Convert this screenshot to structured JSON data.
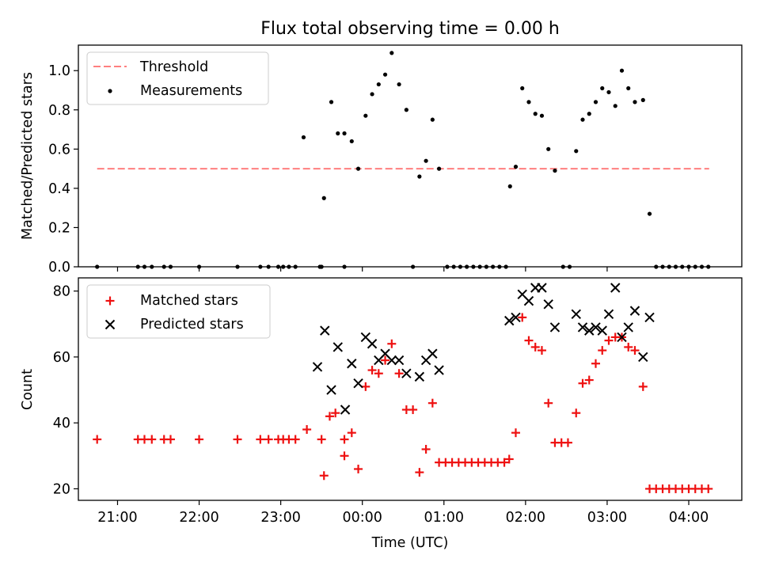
{
  "figure": {
    "title": "Flux total observing time = 0.00 h",
    "xlabel": "Time (UTC)",
    "xticks": [
      "21:00",
      "22:00",
      "23:00",
      "00:00",
      "01:00",
      "02:00",
      "03:00",
      "04:00"
    ]
  },
  "colors": {
    "threshold": "#ff7f7f",
    "measurements": "#000000",
    "matched": "#ee1111",
    "predicted": "#000000"
  },
  "chart_data": [
    {
      "type": "scatter",
      "ylabel": "Matched/Predicted stars",
      "ylim": [
        0,
        1.13
      ],
      "yticks": [
        "0.0",
        "0.2",
        "0.4",
        "0.6",
        "0.8",
        "1.0"
      ],
      "xlim": [
        -3.48,
        4.65
      ],
      "x_unit": "hours relative to 00:00 UTC",
      "legend_placement": "top-left",
      "threshold": {
        "name": "Threshold",
        "value": 0.5,
        "x_range": [
          -3.25,
          4.25
        ]
      },
      "series": [
        {
          "name": "Measurements",
          "points": [
            [
              -3.25,
              0
            ],
            [
              -2.75,
              0
            ],
            [
              -2.67,
              0
            ],
            [
              -2.58,
              0
            ],
            [
              -2.43,
              0
            ],
            [
              -2.35,
              0
            ],
            [
              -2.0,
              0
            ],
            [
              -1.53,
              0
            ],
            [
              -1.25,
              0
            ],
            [
              -1.15,
              0
            ],
            [
              -1.03,
              0
            ],
            [
              -0.97,
              0
            ],
            [
              -0.9,
              0
            ],
            [
              -0.82,
              0
            ],
            [
              -0.5,
              0
            ],
            [
              -0.22,
              0
            ],
            [
              -0.52,
              0
            ],
            [
              -0.72,
              0.66
            ],
            [
              -0.47,
              0.35
            ],
            [
              -0.38,
              0.84
            ],
            [
              -0.3,
              0.68
            ],
            [
              -0.22,
              0.68
            ],
            [
              -0.13,
              0.64
            ],
            [
              -0.05,
              0.5
            ],
            [
              0.04,
              0.77
            ],
            [
              0.12,
              0.88
            ],
            [
              0.2,
              0.93
            ],
            [
              0.28,
              0.98
            ],
            [
              0.36,
              1.09
            ],
            [
              0.45,
              0.93
            ],
            [
              0.54,
              0.8
            ],
            [
              0.62,
              0.0
            ],
            [
              0.7,
              0.46
            ],
            [
              0.78,
              0.54
            ],
            [
              0.86,
              0.75
            ],
            [
              0.94,
              0.5
            ],
            [
              1.04,
              0
            ],
            [
              1.12,
              0
            ],
            [
              1.2,
              0
            ],
            [
              1.28,
              0
            ],
            [
              1.36,
              0
            ],
            [
              1.44,
              0
            ],
            [
              1.52,
              0
            ],
            [
              1.6,
              0
            ],
            [
              1.68,
              0
            ],
            [
              1.76,
              0
            ],
            [
              1.81,
              0.41
            ],
            [
              1.88,
              0.51
            ],
            [
              1.96,
              0.91
            ],
            [
              2.04,
              0.84
            ],
            [
              2.12,
              0.78
            ],
            [
              2.2,
              0.77
            ],
            [
              2.28,
              0.6
            ],
            [
              2.36,
              0.49
            ],
            [
              2.46,
              0
            ],
            [
              2.54,
              0
            ],
            [
              2.62,
              0.59
            ],
            [
              2.7,
              0.75
            ],
            [
              2.78,
              0.78
            ],
            [
              2.86,
              0.84
            ],
            [
              2.94,
              0.91
            ],
            [
              3.02,
              0.89
            ],
            [
              3.1,
              0.82
            ],
            [
              3.18,
              1.0
            ],
            [
              3.26,
              0.91
            ],
            [
              3.34,
              0.84
            ],
            [
              3.44,
              0.85
            ],
            [
              3.52,
              0.27
            ],
            [
              3.6,
              0
            ],
            [
              3.68,
              0
            ],
            [
              3.76,
              0
            ],
            [
              3.84,
              0
            ],
            [
              3.92,
              0
            ],
            [
              4.0,
              0
            ],
            [
              4.08,
              0
            ],
            [
              4.16,
              0
            ],
            [
              4.24,
              0
            ]
          ]
        }
      ]
    },
    {
      "type": "scatter",
      "ylabel": "Count",
      "ylim": [
        16.5,
        84
      ],
      "yticks": [
        "20",
        "40",
        "60",
        "80"
      ],
      "xlim": [
        -3.48,
        4.65
      ],
      "x_unit": "hours relative to 00:00 UTC",
      "legend_placement": "top-left",
      "series": [
        {
          "name": "Matched stars",
          "points": [
            [
              -3.25,
              35
            ],
            [
              -2.75,
              35
            ],
            [
              -2.67,
              35
            ],
            [
              -2.58,
              35
            ],
            [
              -2.43,
              35
            ],
            [
              -2.35,
              35
            ],
            [
              -2.0,
              35
            ],
            [
              -1.53,
              35
            ],
            [
              -1.25,
              35
            ],
            [
              -1.15,
              35
            ],
            [
              -1.03,
              35
            ],
            [
              -0.97,
              35
            ],
            [
              -0.9,
              35
            ],
            [
              -0.82,
              35
            ],
            [
              -0.5,
              35
            ],
            [
              -0.22,
              35
            ],
            [
              -0.68,
              38
            ],
            [
              -0.47,
              24
            ],
            [
              -0.4,
              42
            ],
            [
              -0.33,
              43
            ],
            [
              -0.22,
              30
            ],
            [
              -0.13,
              37
            ],
            [
              -0.05,
              26
            ],
            [
              0.04,
              51
            ],
            [
              0.12,
              56
            ],
            [
              0.2,
              55
            ],
            [
              0.28,
              59
            ],
            [
              0.36,
              64
            ],
            [
              0.45,
              55
            ],
            [
              0.54,
              44
            ],
            [
              0.62,
              44
            ],
            [
              0.7,
              25
            ],
            [
              0.78,
              32
            ],
            [
              0.86,
              46
            ],
            [
              0.94,
              28
            ],
            [
              1.02,
              28
            ],
            [
              1.1,
              28
            ],
            [
              1.18,
              28
            ],
            [
              1.26,
              28
            ],
            [
              1.34,
              28
            ],
            [
              1.42,
              28
            ],
            [
              1.5,
              28
            ],
            [
              1.58,
              28
            ],
            [
              1.66,
              28
            ],
            [
              1.74,
              28
            ],
            [
              1.8,
              29
            ],
            [
              1.88,
              37
            ],
            [
              1.96,
              72
            ],
            [
              2.04,
              65
            ],
            [
              2.12,
              63
            ],
            [
              2.2,
              62
            ],
            [
              2.28,
              46
            ],
            [
              2.36,
              34
            ],
            [
              2.44,
              34
            ],
            [
              2.52,
              34
            ],
            [
              2.62,
              43
            ],
            [
              2.7,
              52
            ],
            [
              2.78,
              53
            ],
            [
              2.86,
              58
            ],
            [
              2.94,
              62
            ],
            [
              3.02,
              65
            ],
            [
              3.1,
              66
            ],
            [
              3.18,
              66
            ],
            [
              3.26,
              63
            ],
            [
              3.34,
              62
            ],
            [
              3.44,
              51
            ],
            [
              3.52,
              20
            ],
            [
              3.6,
              20
            ],
            [
              3.68,
              20
            ],
            [
              3.76,
              20
            ],
            [
              3.84,
              20
            ],
            [
              3.92,
              20
            ],
            [
              4.0,
              20
            ],
            [
              4.08,
              20
            ],
            [
              4.16,
              20
            ],
            [
              4.24,
              20
            ]
          ]
        },
        {
          "name": "Predicted stars",
          "points": [
            [
              -0.55,
              57
            ],
            [
              -0.46,
              68
            ],
            [
              -0.38,
              50
            ],
            [
              -0.3,
              63
            ],
            [
              -0.21,
              44
            ],
            [
              -0.13,
              58
            ],
            [
              -0.05,
              52
            ],
            [
              0.04,
              66
            ],
            [
              0.12,
              64
            ],
            [
              0.2,
              59
            ],
            [
              0.28,
              61
            ],
            [
              0.36,
              59
            ],
            [
              0.45,
              59
            ],
            [
              0.54,
              55
            ],
            [
              0.7,
              54
            ],
            [
              0.78,
              59
            ],
            [
              0.86,
              61
            ],
            [
              0.94,
              56
            ],
            [
              1.8,
              71
            ],
            [
              1.88,
              72
            ],
            [
              1.96,
              79
            ],
            [
              2.04,
              77
            ],
            [
              2.12,
              81
            ],
            [
              2.2,
              81
            ],
            [
              2.28,
              76
            ],
            [
              2.36,
              69
            ],
            [
              2.62,
              73
            ],
            [
              2.7,
              69
            ],
            [
              2.78,
              68
            ],
            [
              2.86,
              69
            ],
            [
              2.94,
              68
            ],
            [
              3.02,
              73
            ],
            [
              3.1,
              81
            ],
            [
              3.18,
              66
            ],
            [
              3.26,
              69
            ],
            [
              3.34,
              74
            ],
            [
              3.44,
              60
            ],
            [
              3.52,
              72
            ]
          ]
        }
      ]
    }
  ]
}
